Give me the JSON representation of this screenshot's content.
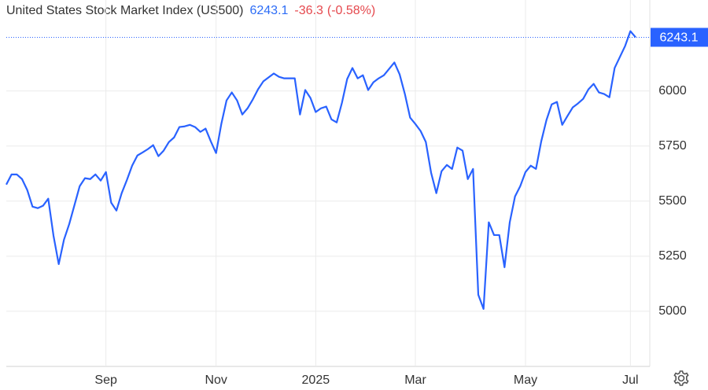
{
  "chart_data": {
    "type": "line",
    "title": "United States Stock Market Index (US500)",
    "last_value": 6243.1,
    "change": -36.3,
    "change_pct": {
      "value": -0.58,
      "label": "(-0.58%)"
    },
    "categories": [
      null,
      null,
      null,
      null,
      null,
      null,
      null,
      null,
      null,
      null,
      null,
      null,
      null,
      null,
      null,
      null,
      null,
      null,
      null,
      "Sep",
      null,
      null,
      null,
      null,
      null,
      null,
      null,
      null,
      null,
      null,
      null,
      null,
      null,
      null,
      null,
      null,
      null,
      null,
      null,
      null,
      "Nov",
      null,
      null,
      null,
      null,
      null,
      null,
      null,
      null,
      null,
      null,
      null,
      null,
      null,
      null,
      null,
      null,
      null,
      null,
      "2025",
      null,
      null,
      null,
      null,
      null,
      null,
      null,
      null,
      null,
      null,
      null,
      null,
      null,
      null,
      null,
      null,
      null,
      null,
      "Mar",
      null,
      null,
      null,
      null,
      null,
      null,
      null,
      null,
      null,
      null,
      null,
      null,
      null,
      null,
      null,
      null,
      null,
      null,
      null,
      null,
      "May",
      null,
      null,
      null,
      null,
      null,
      null,
      null,
      null,
      null,
      null,
      null,
      null,
      null,
      null,
      null,
      null,
      null,
      null,
      null,
      "Jul",
      null
    ],
    "series": [
      {
        "name": "US500",
        "color": "#2962ff",
        "values": [
          5575,
          5621,
          5621,
          5600,
          5550,
          5475,
          5468,
          5479,
          5511,
          5343,
          5214,
          5325,
          5396,
          5482,
          5568,
          5604,
          5600,
          5621,
          5593,
          5632,
          5493,
          5457,
          5536,
          5596,
          5661,
          5707,
          5721,
          5736,
          5754,
          5704,
          5729,
          5768,
          5789,
          5836,
          5839,
          5846,
          5836,
          5814,
          5829,
          5771,
          5718,
          5850,
          5957,
          5993,
          5957,
          5893,
          5921,
          5961,
          6007,
          6043,
          6061,
          6079,
          6064,
          6057,
          6057,
          6057,
          5893,
          6004,
          5968,
          5904,
          5921,
          5929,
          5871,
          5857,
          5946,
          6054,
          6104,
          6057,
          6071,
          6004,
          6039,
          6057,
          6071,
          6100,
          6129,
          6075,
          5986,
          5879,
          5850,
          5818,
          5768,
          5629,
          5536,
          5636,
          5664,
          5646,
          5743,
          5729,
          5600,
          5646,
          5075,
          5011,
          5404,
          5346,
          5346,
          5200,
          5404,
          5521,
          5568,
          5632,
          5661,
          5646,
          5771,
          5868,
          5939,
          5950,
          5846,
          5886,
          5925,
          5943,
          5964,
          6007,
          6032,
          5993,
          5986,
          5971,
          6104,
          6154,
          6204,
          6271,
          6243.1
        ]
      }
    ],
    "ylim": [
      4750,
      6375
    ],
    "yticks": [
      5000,
      5250,
      5500,
      5750,
      6000
    ],
    "grid": true
  }
}
